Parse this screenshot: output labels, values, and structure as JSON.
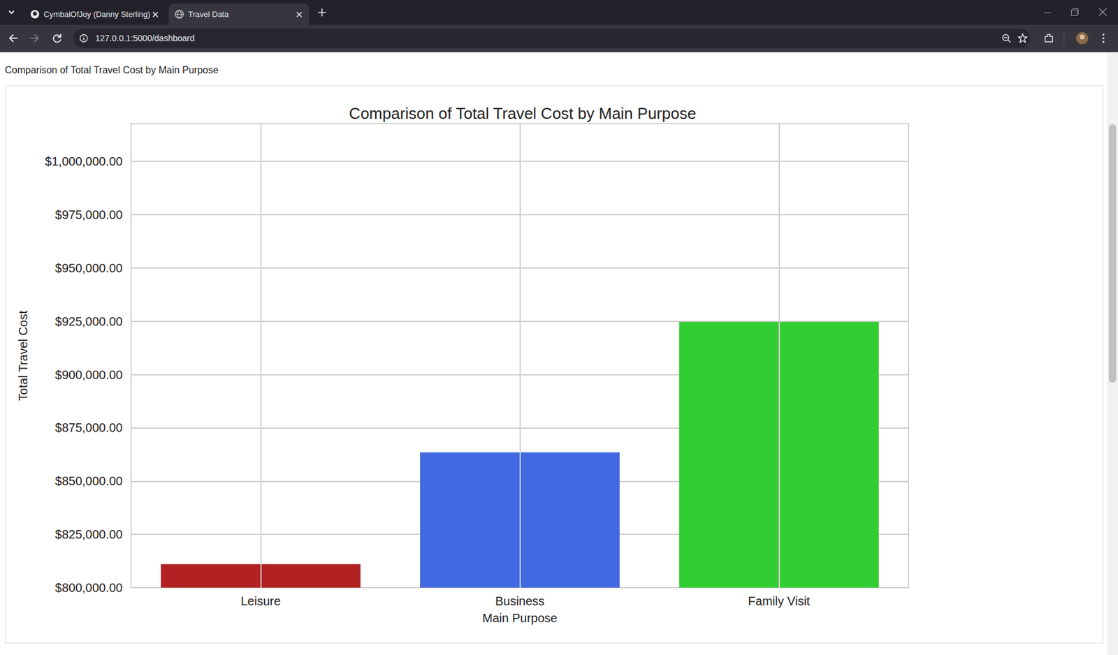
{
  "browser": {
    "tabs": [
      "CymbalOfJoy (Danny Sterling)",
      "Travel Data"
    ],
    "url": "127.0.0.1:5000/dashboard"
  },
  "page": {
    "heading": "Comparison of Total Travel Cost by Main Purpose"
  },
  "chart_data": {
    "type": "bar",
    "title": "Comparison of Total Travel Cost by Main Purpose",
    "x_label": "Main Purpose",
    "y_label": "Total Travel Cost",
    "categories": [
      "Leisure",
      "Business",
      "Family Visit"
    ],
    "values": [
      811000,
      863500,
      924700
    ],
    "colors": [
      "#b22222",
      "#4169e1",
      "#32cd32"
    ],
    "ylim": [
      800000,
      1017700
    ],
    "yticks": [
      {
        "value": 800000,
        "label": "$800,000.00"
      },
      {
        "value": 825000,
        "label": "$825,000.00"
      },
      {
        "value": 850000,
        "label": "$850,000.00"
      },
      {
        "value": 875000,
        "label": "$875,000.00"
      },
      {
        "value": 900000,
        "label": "$900,000.00"
      },
      {
        "value": 925000,
        "label": "$925,000.00"
      },
      {
        "value": 950000,
        "label": "$950,000.00"
      },
      {
        "value": 975000,
        "label": "$975,000.00"
      },
      {
        "value": 1000000,
        "label": "$1,000,000.00"
      }
    ],
    "grid": true
  }
}
